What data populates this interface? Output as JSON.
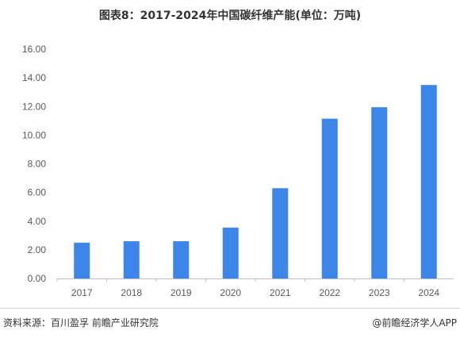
{
  "chart_data": {
    "type": "bar",
    "title": "图表8：2017-2024年中国碳纤维产能(单位：万吨)",
    "xlabel": "",
    "ylabel": "",
    "categories": [
      "2017",
      "2018",
      "2019",
      "2020",
      "2021",
      "2022",
      "2023",
      "2024"
    ],
    "values": [
      2.5,
      2.6,
      2.6,
      3.55,
      6.3,
      11.15,
      11.95,
      13.5
    ],
    "ylim": [
      0,
      16
    ],
    "yticks": [
      "0.00",
      "2.00",
      "4.00",
      "6.00",
      "8.00",
      "10.00",
      "12.00",
      "14.00",
      "16.00"
    ],
    "bar_color": "#3b86e8",
    "grid": false,
    "legend": "none"
  },
  "footer": {
    "source": "资料来源：百川盈孚 前瞻产业研究院",
    "credit": "@前瞻经济学人APP"
  },
  "colors": {
    "axis": "#bfbfbf",
    "text": "#333333",
    "divider": "#d9d9d9"
  }
}
